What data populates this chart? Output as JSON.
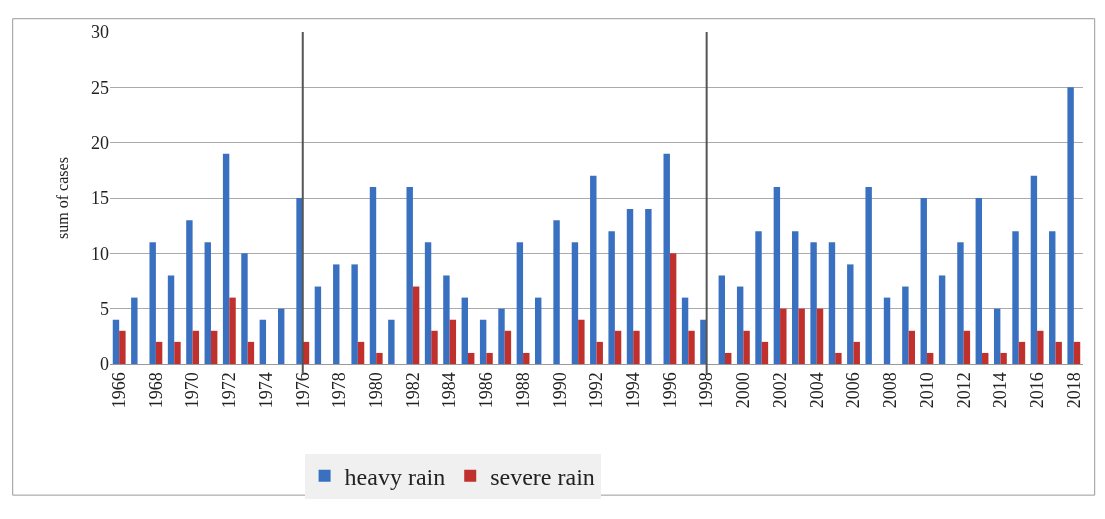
{
  "chart_data": {
    "type": "bar",
    "ylabel": "sum of cases",
    "categories": [
      "1966",
      null,
      "1968",
      null,
      "1970",
      null,
      "1972",
      null,
      "1974",
      null,
      "1976",
      null,
      "1978",
      null,
      "1980",
      null,
      "1982",
      null,
      "1984",
      null,
      "1986",
      null,
      "1988",
      null,
      "1990",
      null,
      "1992",
      null,
      "1994",
      null,
      "1996",
      null,
      "1998",
      null,
      "2000",
      null,
      "2002",
      null,
      "2004",
      null,
      "2006",
      null,
      "2008",
      null,
      "2010",
      null,
      "2012",
      null,
      "2014",
      null,
      "2016",
      null,
      "2018"
    ],
    "series": [
      {
        "name": "heavy rain",
        "color": "#3a70c0",
        "values": [
          4,
          6,
          11,
          8,
          13,
          11,
          19,
          10,
          4,
          5,
          15,
          7,
          9,
          9,
          16,
          4,
          16,
          11,
          8,
          6,
          4,
          5,
          11,
          6,
          13,
          11,
          17,
          12,
          14,
          14,
          19,
          6,
          4,
          8,
          7,
          12,
          16,
          12,
          11,
          11,
          9,
          16,
          6,
          7,
          15,
          8,
          11,
          15,
          5,
          12,
          17,
          12,
          25
        ]
      },
      {
        "name": "severe rain",
        "color": "#c0302c",
        "values": [
          3,
          0,
          2,
          2,
          3,
          3,
          6,
          2,
          0,
          0,
          2,
          0,
          0,
          2,
          1,
          0,
          7,
          3,
          4,
          1,
          1,
          3,
          1,
          0,
          0,
          4,
          2,
          3,
          3,
          0,
          10,
          3,
          0,
          1,
          3,
          2,
          5,
          5,
          5,
          1,
          2,
          0,
          0,
          3,
          1,
          0,
          3,
          1,
          1,
          2,
          3,
          2,
          2
        ]
      }
    ],
    "ylim": [
      0,
      30
    ],
    "yticks": [
      0,
      5,
      10,
      15,
      20,
      25,
      30
    ],
    "grid": "y",
    "legend": "bottom",
    "ref_lines": [
      {
        "axis": "x",
        "value": "1976",
        "color": "#555555"
      },
      {
        "axis": "x",
        "value": "1998",
        "color": "#555555"
      }
    ]
  }
}
